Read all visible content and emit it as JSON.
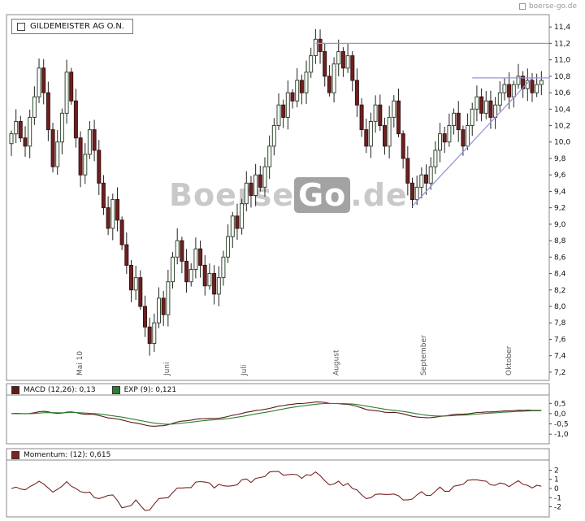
{
  "header": {
    "brand": "boerse-go.de"
  },
  "main_chart": {
    "legend": "GILDEMEISTER AG O.N.",
    "watermark": {
      "part1": "Boerse",
      "part2": "Go",
      "part3": ".de"
    },
    "y_ticks": [
      "11,4",
      "11,2",
      "11,0",
      "10,8",
      "10,6",
      "10,4",
      "10,2",
      "10,0",
      "9,8",
      "9,6",
      "9,4",
      "9,2",
      "9,0",
      "8,8",
      "8,6",
      "8,4",
      "8,2",
      "8,0",
      "7,8",
      "7,6",
      "7,4",
      "7,2"
    ],
    "month_labels": [
      "Mai 10",
      "Juni",
      "Juli",
      "August",
      "September",
      "Oktober"
    ]
  },
  "macd_panel": {
    "macd_label": "MACD (12,26): 0,13",
    "exp_label": "EXP (9): 0,121",
    "y_ticks": [
      "0,5",
      "0,0",
      "-0,5",
      "-1,0"
    ]
  },
  "momentum_panel": {
    "label": "Momentum: (12): 0,615",
    "y_ticks": [
      "2",
      "1",
      "0",
      "-1",
      "-2"
    ]
  },
  "colors": {
    "panel_border": "#8a8a8a",
    "bull_fill": "#ffffff",
    "bull_stroke": "#31492f",
    "bear_fill": "#6e2020",
    "bear_stroke": "#3c1212",
    "wick": "#222222",
    "trendline": "#9494d8",
    "macd": "#5c1a1a",
    "exp": "#2e7d2e",
    "momentum": "#7a2424"
  },
  "chart_data": {
    "type": "candlestick",
    "title": "GILDEMEISTER AG O.N.",
    "x_axis": {
      "start": "Mai 2010",
      "end": "Oktober 2010",
      "labels": [
        "Mai 10",
        "Juni",
        "Juli",
        "August",
        "September",
        "Oktober"
      ]
    },
    "ylim": [
      7.2,
      11.4
    ],
    "y_step": 0.2,
    "closes": [
      10.1,
      10.25,
      10.05,
      9.95,
      10.3,
      10.55,
      10.9,
      10.6,
      10.15,
      9.7,
      10.0,
      10.35,
      10.85,
      10.5,
      10.05,
      9.6,
      9.85,
      10.15,
      9.9,
      9.5,
      9.2,
      8.95,
      9.3,
      9.05,
      8.75,
      8.5,
      8.2,
      8.35,
      8.0,
      7.75,
      7.55,
      7.8,
      8.1,
      7.9,
      8.3,
      8.6,
      8.8,
      8.55,
      8.3,
      8.45,
      8.7,
      8.5,
      8.25,
      8.4,
      8.15,
      8.35,
      8.6,
      8.85,
      9.1,
      8.95,
      9.25,
      9.5,
      9.35,
      9.6,
      9.45,
      9.7,
      9.95,
      10.2,
      10.45,
      10.3,
      10.6,
      10.5,
      10.75,
      10.6,
      10.85,
      11.05,
      11.25,
      11.1,
      10.8,
      10.6,
      10.95,
      11.1,
      10.9,
      11.05,
      10.75,
      10.45,
      10.15,
      9.95,
      10.25,
      10.45,
      10.2,
      9.95,
      10.3,
      10.5,
      10.1,
      9.8,
      9.5,
      9.3,
      9.45,
      9.6,
      9.5,
      9.7,
      9.9,
      10.1,
      10.0,
      10.2,
      10.35,
      10.15,
      9.95,
      10.2,
      10.4,
      10.55,
      10.35,
      10.5,
      10.3,
      10.45,
      10.6,
      10.7,
      10.55,
      10.7,
      10.8,
      10.65,
      10.75,
      10.6,
      10.7,
      10.75
    ],
    "trendlines": [
      {
        "from_index": 66,
        "from_price": 11.2,
        "to_index": 115,
        "to_price": 11.2,
        "extend_right": true
      },
      {
        "from_index": 100,
        "from_price": 10.78,
        "to_index": 115,
        "to_price": 10.78,
        "extend_right": true
      },
      {
        "from_index": 87,
        "from_price": 9.22,
        "to_index": 113,
        "to_price": 10.78,
        "extend_right": false
      }
    ],
    "macd": {
      "fast": 12,
      "slow": 26,
      "signal": 9,
      "current": "0,13",
      "signal_current": "0,121",
      "ylim": [
        -1.0,
        0.5
      ]
    },
    "momentum": {
      "period": 12,
      "current": "0,615",
      "ylim": [
        -2,
        2
      ]
    }
  }
}
